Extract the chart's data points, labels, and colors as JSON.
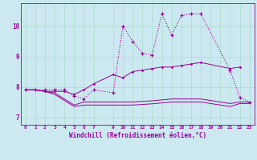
{
  "xlabel": "Windchill (Refroidissement éolien,°C)",
  "bg_color": "#cce8f0",
  "line_color": "#990099",
  "grid_color": "#aaddee",
  "xmin": -0.5,
  "xmax": 23.5,
  "ymin": 6.75,
  "ymax": 10.75,
  "yticks": [
    7,
    8,
    9,
    10
  ],
  "xtick_labels": [
    "0",
    "1",
    "2",
    "3",
    "4",
    "5",
    "6",
    "7",
    "9",
    "10",
    "11",
    "12",
    "13",
    "14",
    "15",
    "16",
    "17",
    "18",
    "19",
    "20",
    "21",
    "22",
    "23"
  ],
  "xtick_positions": [
    0,
    1,
    2,
    3,
    4,
    5,
    6,
    7,
    9,
    10,
    11,
    12,
    13,
    14,
    15,
    16,
    17,
    18,
    19,
    20,
    21,
    22,
    23
  ],
  "series_A_x": [
    0,
    1,
    2,
    3,
    4,
    5,
    6,
    7,
    9,
    10,
    11,
    12,
    13,
    14,
    15,
    16,
    17,
    18,
    21,
    22,
    23
  ],
  "series_A_y": [
    7.9,
    7.9,
    7.9,
    7.9,
    7.9,
    7.7,
    7.6,
    7.9,
    7.8,
    10.0,
    9.5,
    9.1,
    9.05,
    10.4,
    9.7,
    10.35,
    10.4,
    10.4,
    8.55,
    7.65,
    7.5
  ],
  "series_B_x": [
    0,
    1,
    2,
    3,
    4,
    5,
    6,
    7,
    9,
    10,
    11,
    12,
    13,
    14,
    15,
    16,
    17,
    18,
    21,
    22
  ],
  "series_B_y": [
    7.9,
    7.9,
    7.85,
    7.85,
    7.85,
    7.75,
    7.9,
    8.1,
    8.4,
    8.3,
    8.5,
    8.55,
    8.6,
    8.65,
    8.65,
    8.7,
    8.75,
    8.8,
    8.6,
    8.65
  ],
  "series_C_x": [
    0,
    1,
    2,
    3,
    4,
    5,
    6,
    7,
    9,
    10,
    11,
    12,
    13,
    14,
    15,
    16,
    17,
    18,
    21,
    22,
    23
  ],
  "series_C_y": [
    7.9,
    7.9,
    7.85,
    7.75,
    7.55,
    7.35,
    7.4,
    7.4,
    7.4,
    7.4,
    7.4,
    7.42,
    7.44,
    7.47,
    7.5,
    7.5,
    7.5,
    7.5,
    7.35,
    7.45,
    7.45
  ],
  "series_D_x": [
    0,
    1,
    2,
    3,
    4,
    5,
    6,
    7,
    9,
    10,
    11,
    12,
    13,
    14,
    15,
    16,
    17,
    18,
    21,
    22,
    23
  ],
  "series_D_y": [
    7.9,
    7.9,
    7.85,
    7.8,
    7.6,
    7.4,
    7.5,
    7.5,
    7.5,
    7.5,
    7.5,
    7.52,
    7.54,
    7.57,
    7.6,
    7.6,
    7.6,
    7.6,
    7.45,
    7.5,
    7.5
  ]
}
